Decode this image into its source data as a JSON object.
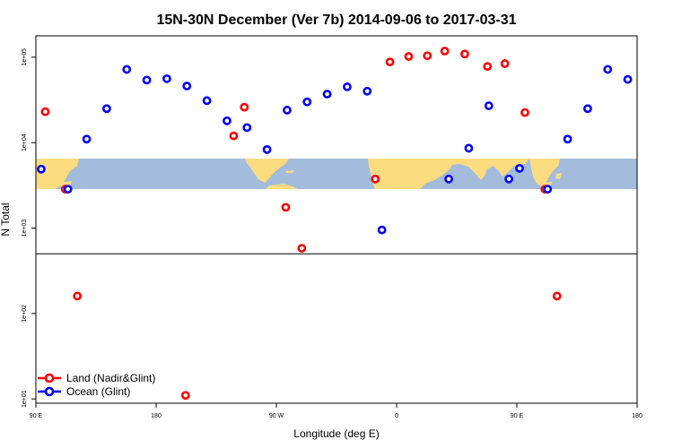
{
  "chart_data": {
    "type": "scatter",
    "title": "15N-30N December (Ver 7b)   2014-09-06 to 2017-03-31",
    "xlabel": "Longitude (deg E)",
    "ylabel": "N Total",
    "x_ticks": [
      {
        "value": 90,
        "label": "90 E"
      },
      {
        "value": 180,
        "label": "180"
      },
      {
        "value": 270,
        "label": "90 W"
      },
      {
        "value": 360,
        "label": "0"
      },
      {
        "value": 450,
        "label": "90 E"
      },
      {
        "value": 540,
        "label": "180"
      }
    ],
    "y_ticks": [
      {
        "value": 10,
        "label": "1e+01"
      },
      {
        "value": 100,
        "label": "1e+02"
      },
      {
        "value": 1000,
        "label": "1e+03"
      },
      {
        "value": 10000,
        "label": "1e+04"
      },
      {
        "value": 100000,
        "label": "1e+05"
      }
    ],
    "xlim": [
      90,
      540
    ],
    "ylim_log10": [
      0.95,
      5.25
    ],
    "y_scale": "log",
    "reference_line_y": 500,
    "legend_position": "bottom-left",
    "series": [
      {
        "name": "Land (Nadir&Glint)",
        "color": "#ff0000",
        "points": [
          {
            "x": 97,
            "y": 23000
          },
          {
            "x": 112,
            "y": 2850
          },
          {
            "x": 121,
            "y": 160
          },
          {
            "x": 202,
            "y": 11
          },
          {
            "x": 238,
            "y": 12000
          },
          {
            "x": 246,
            "y": 26000
          },
          {
            "x": 277,
            "y": 1750
          },
          {
            "x": 289,
            "y": 580
          },
          {
            "x": 344,
            "y": 3750
          },
          {
            "x": 355,
            "y": 88000
          },
          {
            "x": 369,
            "y": 102000
          },
          {
            "x": 383,
            "y": 104000
          },
          {
            "x": 396,
            "y": 118000
          },
          {
            "x": 411,
            "y": 109000
          },
          {
            "x": 428,
            "y": 78000
          },
          {
            "x": 441,
            "y": 84000
          },
          {
            "x": 456,
            "y": 22500
          },
          {
            "x": 471,
            "y": 2850
          },
          {
            "x": 480,
            "y": 160
          }
        ]
      },
      {
        "name": "Ocean (Glint)",
        "color": "#0000ff",
        "points": [
          {
            "x": 94,
            "y": 4900
          },
          {
            "x": 114,
            "y": 2850
          },
          {
            "x": 128,
            "y": 11000
          },
          {
            "x": 143,
            "y": 25000
          },
          {
            "x": 158,
            "y": 72000
          },
          {
            "x": 173,
            "y": 54000
          },
          {
            "x": 188,
            "y": 56000
          },
          {
            "x": 203,
            "y": 46000
          },
          {
            "x": 218,
            "y": 31000
          },
          {
            "x": 233,
            "y": 18000
          },
          {
            "x": 248,
            "y": 15000
          },
          {
            "x": 263,
            "y": 8300
          },
          {
            "x": 278,
            "y": 24000
          },
          {
            "x": 293,
            "y": 30000
          },
          {
            "x": 308,
            "y": 37000
          },
          {
            "x": 323,
            "y": 45000
          },
          {
            "x": 338,
            "y": 40000
          },
          {
            "x": 349,
            "y": 950
          },
          {
            "x": 399,
            "y": 3750
          },
          {
            "x": 414,
            "y": 8600
          },
          {
            "x": 429,
            "y": 27000
          },
          {
            "x": 444,
            "y": 3750
          },
          {
            "x": 452,
            "y": 5000
          },
          {
            "x": 473,
            "y": 2850
          },
          {
            "x": 488,
            "y": 11000
          },
          {
            "x": 503,
            "y": 25000
          },
          {
            "x": 518,
            "y": 72000
          },
          {
            "x": 533,
            "y": 55000
          }
        ]
      }
    ]
  }
}
